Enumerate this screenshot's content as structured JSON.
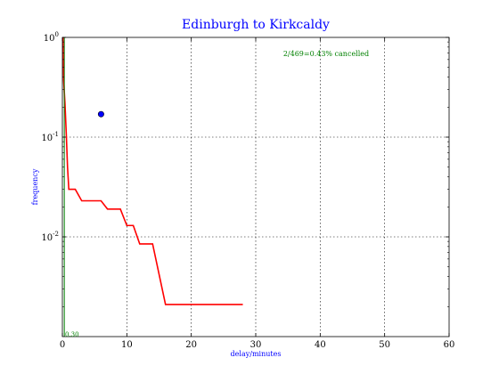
{
  "chart_data": {
    "type": "line",
    "title": "Edinburgh to Kirkcaldy",
    "xlabel": "delay/minutes",
    "ylabel": "frequency",
    "xlim": [
      0,
      60
    ],
    "ylim": [
      0.001,
      1
    ],
    "yscale": "log",
    "grid": true,
    "x_ticks": [
      "0",
      "10",
      "20",
      "30",
      "40",
      "50",
      "60"
    ],
    "y_ticks": [
      {
        "base": "10",
        "exp": "0",
        "value": 1
      },
      {
        "base": "10",
        "exp": "-1",
        "value": 0.1
      },
      {
        "base": "10",
        "exp": "-2",
        "value": 0.01
      }
    ],
    "annotation": "2/469=0.43% cancelled",
    "green_label": "0.30",
    "cancelled_point": {
      "x": 6,
      "y": 0.17,
      "color": "#0000ff"
    },
    "series": [
      {
        "color": "#ff0000",
        "points": [
          [
            0.1,
            1.0
          ],
          [
            0.2,
            0.37
          ],
          [
            0.4,
            0.22
          ],
          [
            0.6,
            0.11
          ],
          [
            0.8,
            0.05
          ],
          [
            1,
            0.03
          ],
          [
            2,
            0.03
          ],
          [
            3,
            0.023
          ],
          [
            6,
            0.023
          ],
          [
            7,
            0.019
          ],
          [
            9,
            0.019
          ],
          [
            10,
            0.013
          ],
          [
            11,
            0.013
          ],
          [
            12,
            0.0085
          ],
          [
            14,
            0.0085
          ],
          [
            16,
            0.0021
          ],
          [
            28,
            0.0021
          ]
        ]
      },
      {
        "color": "#008000",
        "points": [
          [
            0.3,
            1.0
          ],
          [
            0.3,
            0.001
          ]
        ]
      }
    ]
  }
}
